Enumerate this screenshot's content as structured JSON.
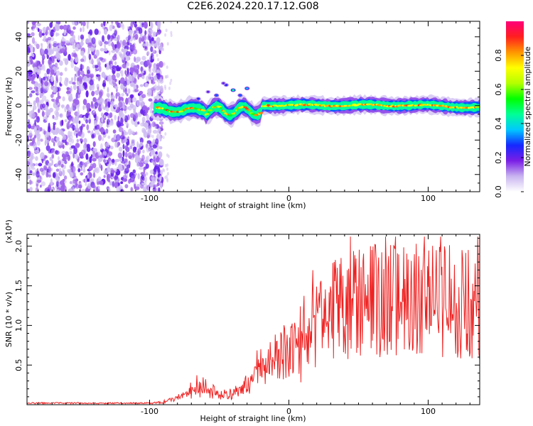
{
  "title": "C2E6.2024.220.17.12.G08",
  "chart_data": [
    {
      "type": "heatmap",
      "xlabel": "Height of straight line (km)",
      "ylabel": "Frequency (Hz)",
      "xlim": [
        -188,
        137
      ],
      "ylim": [
        -50,
        49
      ],
      "xticks": [
        -100,
        0,
        100
      ],
      "yticks": [
        -40,
        -20,
        0,
        20,
        40
      ],
      "colorbar": {
        "label": "Normalized spectral amplitude",
        "range": [
          0,
          1
        ],
        "ticks": [
          "0.0",
          "0.2",
          "0.4",
          "0.6",
          "0.8"
        ],
        "tick_values": [
          0,
          0.2,
          0.4,
          0.6,
          0.8
        ],
        "colormap": [
          "#ffffff",
          "#c8b4f0",
          "#7a1ee6",
          "#1428ff",
          "#00c8ff",
          "#00ff96",
          "#00ff00",
          "#b4ff00",
          "#ffff00",
          "#ff9600",
          "#ff1e1e",
          "#ff007a"
        ]
      },
      "noise_region": {
        "x": [
          -188,
          -95
        ],
        "y": [
          -50,
          49
        ],
        "amplitude": 0.15
      },
      "signal_band": {
        "x_start": -97,
        "x_end": 137,
        "freq_center": 0,
        "freq_halfwidth": 3,
        "peak_amplitude": 0.8
      }
    },
    {
      "type": "line",
      "xlabel": "Height of straight line (km)",
      "ylabel": "SNR (10 * v/v)",
      "multiplier": "(x10⁴)",
      "xlim": [
        -188,
        137
      ],
      "ylim": [
        0,
        2.15
      ],
      "xticks": [
        -100,
        0,
        100
      ],
      "yticks": [
        "0.5",
        "1.0",
        "1.5",
        "2.0"
      ],
      "ytick_values": [
        0.5,
        1.0,
        1.5,
        2.0
      ],
      "color": "#ee2222",
      "profile": {
        "x": [
          -188,
          -100,
          -90,
          -80,
          -70,
          -60,
          -50,
          -40,
          -30,
          -20,
          -10,
          0,
          10,
          20,
          30,
          40,
          50,
          60,
          70,
          80,
          90,
          100,
          110,
          120,
          130,
          137
        ],
        "y": [
          0.02,
          0.02,
          0.03,
          0.08,
          0.15,
          0.22,
          0.12,
          0.15,
          0.25,
          0.4,
          0.5,
          0.75,
          0.6,
          1.05,
          1.2,
          1.25,
          1.3,
          1.35,
          1.3,
          1.32,
          1.35,
          1.3,
          1.32,
          1.3,
          1.28,
          1.25
        ]
      }
    }
  ]
}
